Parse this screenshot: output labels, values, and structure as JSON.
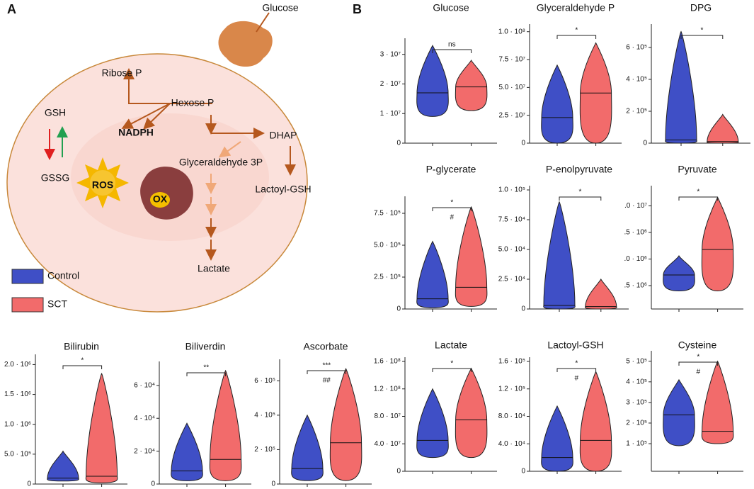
{
  "panel_labels": [
    "A",
    "B"
  ],
  "diagram": {
    "labels": [
      "Glucose",
      "Ribose P",
      "Hexose P",
      "GSH",
      "NADPH",
      "DHAP",
      "Glyceraldehyde 3P",
      "GSSG",
      "ROS",
      "Lactoyl-GSH",
      "OX",
      "Lactate"
    ]
  },
  "groups": [
    {
      "name": "Control",
      "color": "#3f4fc6"
    },
    {
      "name": "SCT",
      "color": "#f26b6b"
    }
  ],
  "charts": [
    {
      "type": "violin",
      "title": "Glucose",
      "significance": "ns",
      "ylim": [
        0,
        34000000
      ],
      "yticks": [
        0,
        {
          "value": 10000000,
          "label": "1 · 10⁷"
        },
        {
          "value": 20000000,
          "label": "2 · 10⁷"
        },
        {
          "value": 30000000,
          "label": "3 · 10⁷"
        }
      ],
      "series": [
        {
          "min": 9000000,
          "median": 17000000,
          "max": 33000000
        },
        {
          "min": 11000000,
          "median": 19000000,
          "max": 28000000
        }
      ]
    },
    {
      "type": "violin",
      "title": "Glyceraldehyde P",
      "significance": "*",
      "ylim": [
        0,
        103000000
      ],
      "yticks": [
        0,
        {
          "value": 25000000,
          "label": "2.5 · 10⁷"
        },
        {
          "value": 50000000,
          "label": "5.0 · 10⁷"
        },
        {
          "value": 75000000,
          "label": "7.5 · 10⁷"
        },
        {
          "value": 100000000,
          "label": "1.0 · 10⁸"
        }
      ],
      "series": [
        {
          "min": 0,
          "median": 23000000,
          "max": 70000000
        },
        {
          "min": 0,
          "median": 45000000,
          "max": 90000000
        }
      ]
    },
    {
      "type": "violin",
      "title": "DPG",
      "significance": "*",
      "ylim": [
        0,
        720000
      ],
      "yticks": [
        0,
        {
          "value": 200000,
          "label": "2 · 10⁵"
        },
        {
          "value": 400000,
          "label": "4 · 10⁵"
        },
        {
          "value": 600000,
          "label": "6 · 10⁵"
        }
      ],
      "series": [
        {
          "min": 0,
          "median": 20000,
          "max": 700000
        },
        {
          "min": 0,
          "median": 10000,
          "max": 180000
        }
      ]
    },
    {
      "type": "violin",
      "title": "P-glycerate",
      "significance": "*",
      "note": "#",
      "ylim": [
        0,
        850000
      ],
      "yticks": [
        0,
        {
          "value": 250000,
          "label": "2.5 · 10⁵"
        },
        {
          "value": 500000,
          "label": "5.0 · 10⁵"
        },
        {
          "value": 750000,
          "label": "7.5 · 10⁵"
        }
      ],
      "series": [
        {
          "min": 10000,
          "median": 80000,
          "max": 530000
        },
        {
          "min": 20000,
          "median": 170000,
          "max": 800000
        }
      ]
    },
    {
      "type": "violin",
      "title": "P-enolpyruvate",
      "significance": "*",
      "ylim": [
        0,
        100000
      ],
      "yticks": [
        0,
        {
          "value": 25000,
          "label": "2.5 · 10⁴"
        },
        {
          "value": 50000,
          "label": "5.0 · 10⁴"
        },
        {
          "value": 75000,
          "label": "7.5 · 10⁴"
        },
        {
          "value": 100000,
          "label": "1.0 · 10⁵"
        }
      ],
      "series": [
        {
          "min": 0,
          "median": 3000,
          "max": 90000
        },
        {
          "min": 0,
          "median": 2000,
          "max": 25000
        }
      ]
    },
    {
      "type": "violin",
      "title": "Pyruvate",
      "significance": "*",
      "ylim": [
        300000,
        11500000
      ],
      "yticks": [
        {
          "value": 2500000,
          "label": ".5 · 10⁶"
        },
        {
          "value": 5000000,
          "label": ".0 · 10⁶"
        },
        {
          "value": 7500000,
          "label": ".5 · 10⁶"
        },
        {
          "value": 10000000,
          "label": ".0 · 10⁷"
        }
      ],
      "series": [
        {
          "min": 2000000,
          "median": 3500000,
          "max": 5300000
        },
        {
          "min": 2000000,
          "median": 5900000,
          "max": 10800000
        }
      ]
    },
    {
      "type": "violin",
      "title": "Lactate",
      "significance": "*",
      "ylim": [
        0,
        160000000
      ],
      "yticks": [
        0,
        {
          "value": 40000000,
          "label": "4.0 · 10⁷"
        },
        {
          "value": 80000000,
          "label": "8.0 · 10⁷"
        },
        {
          "value": 120000000,
          "label": "1.2 · 10⁸"
        },
        {
          "value": 160000000,
          "label": "1.6 · 10⁸"
        }
      ],
      "series": [
        {
          "min": 20000000,
          "median": 45000000,
          "max": 120000000
        },
        {
          "min": 20000000,
          "median": 75000000,
          "max": 150000000
        }
      ]
    },
    {
      "type": "violin",
      "title": "Lactoyl-GSH",
      "significance": "*",
      "note": "#",
      "ylim": [
        0,
        160000
      ],
      "yticks": [
        0,
        {
          "value": 40000,
          "label": "4.0 · 10⁴"
        },
        {
          "value": 80000,
          "label": "8.0 · 10⁴"
        },
        {
          "value": 120000,
          "label": "1.2 · 10⁵"
        },
        {
          "value": 160000,
          "label": "1.6 · 10⁵"
        }
      ],
      "series": [
        {
          "min": 0,
          "median": 20000,
          "max": 95000
        },
        {
          "min": 0,
          "median": 45000,
          "max": 145000
        }
      ]
    },
    {
      "type": "violin",
      "title": "Cysteine",
      "significance": "*",
      "note": "#",
      "ylim": [
        -34000,
        530000
      ],
      "yticks": [
        {
          "value": 100000,
          "label": "1 · 10⁵"
        },
        {
          "value": 200000,
          "label": "2 · 10⁵"
        },
        {
          "value": 300000,
          "label": "3 · 10⁵"
        },
        {
          "value": 400000,
          "label": "4 · 10⁵"
        },
        {
          "value": 500000,
          "label": "5 · 10⁵"
        }
      ],
      "series": [
        {
          "min": 90000,
          "median": 240000,
          "max": 410000
        },
        {
          "min": 100000,
          "median": 160000,
          "max": 500000
        }
      ]
    },
    {
      "type": "violin",
      "title": "Bilirubin",
      "significance": "*",
      "ylim": [
        0,
        2100000
      ],
      "yticks": [
        0,
        {
          "value": 500000,
          "label": "5.0 · 10⁵"
        },
        {
          "value": 1000000,
          "label": "1.0 · 10⁶"
        },
        {
          "value": 1500000,
          "label": "1.5 · 10⁶"
        },
        {
          "value": 2000000,
          "label": "2.0 · 10⁶"
        }
      ],
      "series": [
        {
          "min": 50000,
          "median": 100000,
          "max": 550000
        },
        {
          "min": 20000,
          "median": 130000,
          "max": 1850000
        }
      ]
    },
    {
      "type": "violin",
      "title": "Biliverdin",
      "significance": "**",
      "ylim": [
        0,
        72000
      ],
      "yticks": [
        0,
        {
          "value": 20000,
          "label": "2 · 10⁴"
        },
        {
          "value": 40000,
          "label": "4 · 10⁴"
        },
        {
          "value": 60000,
          "label": "6 · 10⁴"
        }
      ],
      "series": [
        {
          "min": 2000,
          "median": 8000,
          "max": 37000
        },
        {
          "min": 2000,
          "median": 15000,
          "max": 69000
        }
      ]
    },
    {
      "type": "violin",
      "title": "Ascorbate",
      "significance": "***",
      "note": "##",
      "ylim": [
        0,
        700000
      ],
      "yticks": [
        0,
        {
          "value": 200000,
          "label": "2 · 10⁵"
        },
        {
          "value": 400000,
          "label": "4 · 10⁵"
        },
        {
          "value": 600000,
          "label": "6 · 10⁵"
        }
      ],
      "series": [
        {
          "min": 20000,
          "median": 90000,
          "max": 400000
        },
        {
          "min": 20000,
          "median": 240000,
          "max": 670000
        }
      ]
    }
  ]
}
